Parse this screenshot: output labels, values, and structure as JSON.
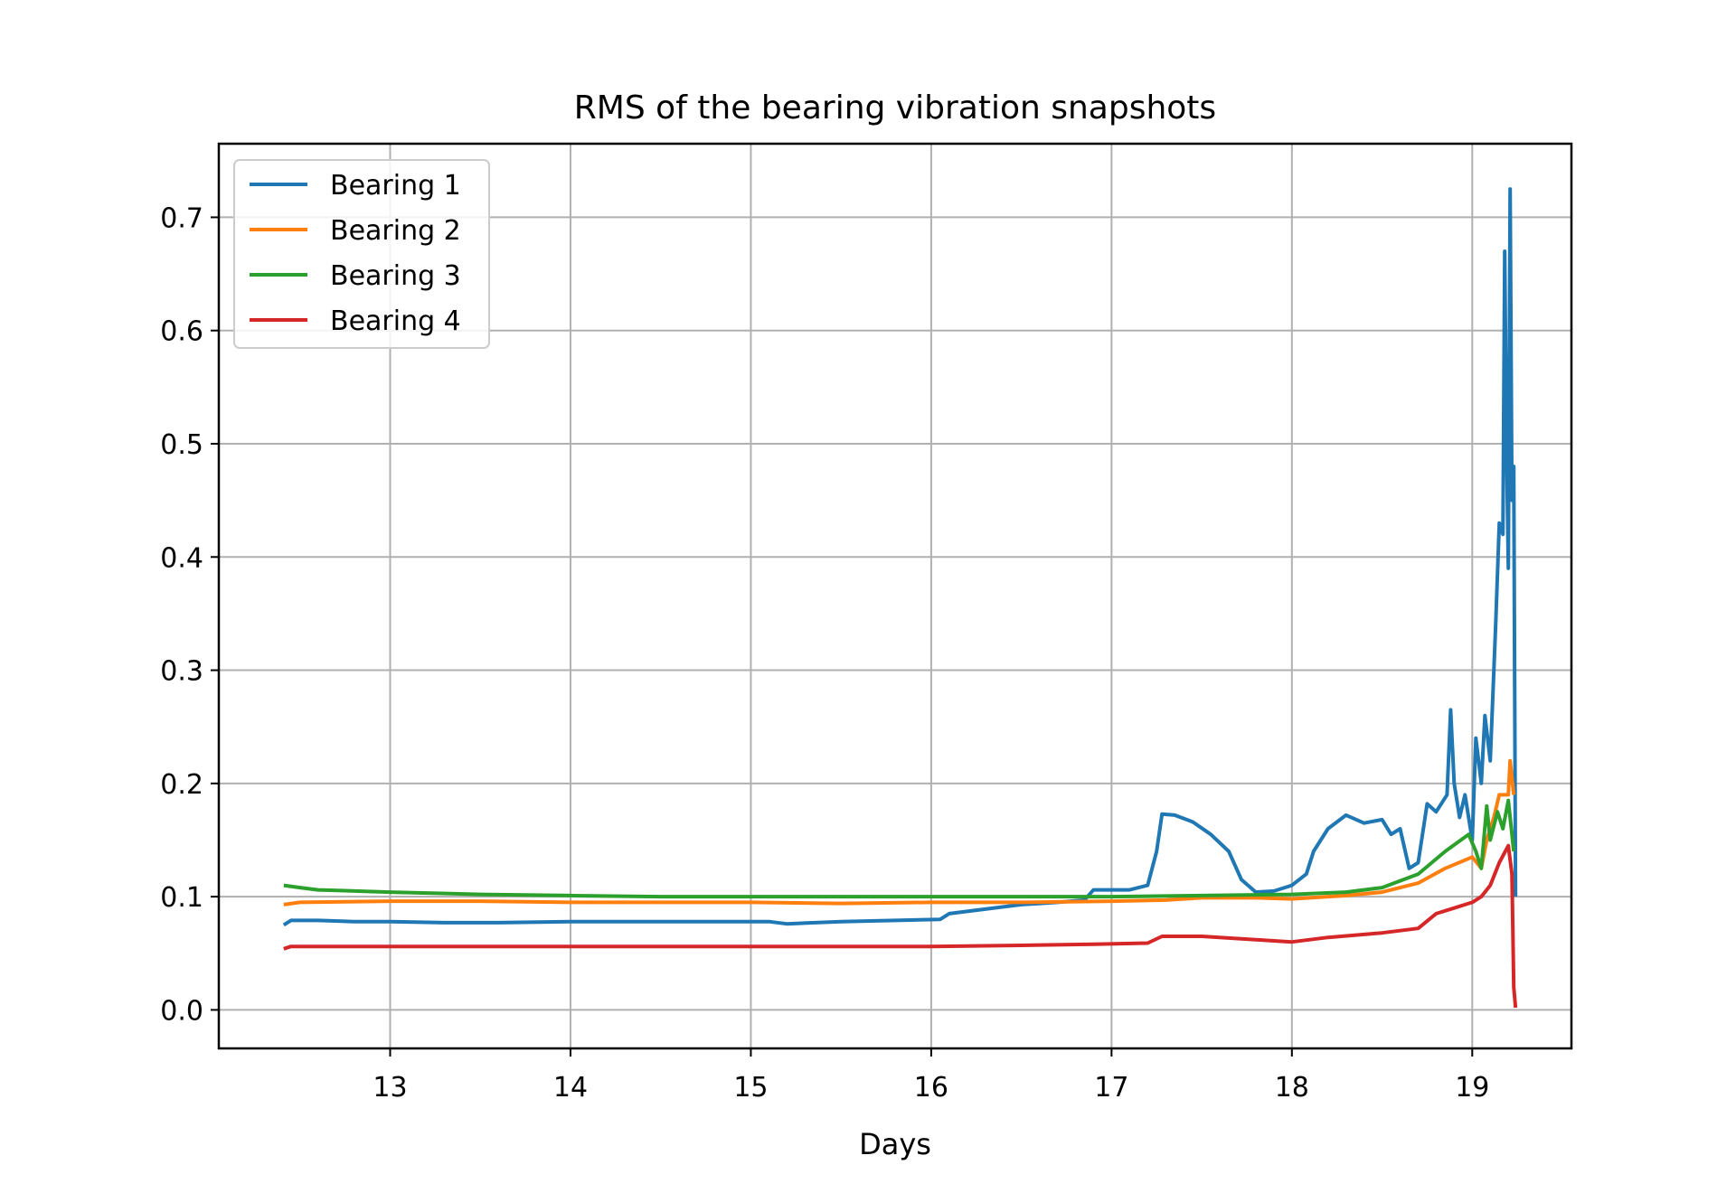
{
  "chart_data": {
    "type": "line",
    "title": "RMS of the bearing vibration snapshots",
    "xlabel": "Days",
    "ylabel": "",
    "xlim": [
      12.05,
      19.55
    ],
    "ylim": [
      -0.034,
      0.765
    ],
    "xticks": [
      13,
      14,
      15,
      16,
      17,
      18,
      19
    ],
    "yticks": [
      0.0,
      0.1,
      0.2,
      0.3,
      0.4,
      0.5,
      0.6,
      0.7
    ],
    "xtick_labels": [
      "13",
      "14",
      "15",
      "16",
      "17",
      "18",
      "19"
    ],
    "ytick_labels": [
      "0.0",
      "0.1",
      "0.2",
      "0.3",
      "0.4",
      "0.5",
      "0.6",
      "0.7"
    ],
    "grid": true,
    "legend_position": "top-left",
    "series": [
      {
        "name": "Bearing 1",
        "color": "#1f77b4",
        "points": [
          [
            12.41,
            0.075
          ],
          [
            12.45,
            0.079
          ],
          [
            12.6,
            0.079
          ],
          [
            12.8,
            0.078
          ],
          [
            13.0,
            0.078
          ],
          [
            13.3,
            0.077
          ],
          [
            13.6,
            0.077
          ],
          [
            14.0,
            0.078
          ],
          [
            14.4,
            0.078
          ],
          [
            14.8,
            0.078
          ],
          [
            15.1,
            0.078
          ],
          [
            15.2,
            0.076
          ],
          [
            15.5,
            0.078
          ],
          [
            15.8,
            0.079
          ],
          [
            16.05,
            0.08
          ],
          [
            16.1,
            0.085
          ],
          [
            16.3,
            0.089
          ],
          [
            16.5,
            0.093
          ],
          [
            16.7,
            0.095
          ],
          [
            16.85,
            0.097
          ],
          [
            16.9,
            0.106
          ],
          [
            17.1,
            0.106
          ],
          [
            17.2,
            0.11
          ],
          [
            17.25,
            0.14
          ],
          [
            17.28,
            0.173
          ],
          [
            17.35,
            0.172
          ],
          [
            17.45,
            0.166
          ],
          [
            17.55,
            0.155
          ],
          [
            17.65,
            0.14
          ],
          [
            17.72,
            0.115
          ],
          [
            17.8,
            0.104
          ],
          [
            17.9,
            0.105
          ],
          [
            18.0,
            0.11
          ],
          [
            18.08,
            0.12
          ],
          [
            18.12,
            0.14
          ],
          [
            18.2,
            0.16
          ],
          [
            18.3,
            0.172
          ],
          [
            18.4,
            0.165
          ],
          [
            18.5,
            0.168
          ],
          [
            18.55,
            0.155
          ],
          [
            18.6,
            0.16
          ],
          [
            18.65,
            0.125
          ],
          [
            18.7,
            0.13
          ],
          [
            18.75,
            0.182
          ],
          [
            18.8,
            0.175
          ],
          [
            18.86,
            0.19
          ],
          [
            18.88,
            0.265
          ],
          [
            18.9,
            0.2
          ],
          [
            18.93,
            0.17
          ],
          [
            18.96,
            0.19
          ],
          [
            19.0,
            0.15
          ],
          [
            19.02,
            0.24
          ],
          [
            19.05,
            0.2
          ],
          [
            19.07,
            0.26
          ],
          [
            19.1,
            0.22
          ],
          [
            19.12,
            0.3
          ],
          [
            19.13,
            0.34
          ],
          [
            19.15,
            0.43
          ],
          [
            19.17,
            0.42
          ],
          [
            19.18,
            0.67
          ],
          [
            19.19,
            0.5
          ],
          [
            19.2,
            0.39
          ],
          [
            19.21,
            0.725
          ],
          [
            19.22,
            0.45
          ],
          [
            19.23,
            0.48
          ],
          [
            19.24,
            0.1
          ]
        ]
      },
      {
        "name": "Bearing 2",
        "color": "#ff7f0e",
        "points": [
          [
            12.41,
            0.093
          ],
          [
            12.5,
            0.095
          ],
          [
            13.0,
            0.096
          ],
          [
            13.5,
            0.096
          ],
          [
            14.0,
            0.095
          ],
          [
            14.5,
            0.095
          ],
          [
            15.0,
            0.095
          ],
          [
            15.5,
            0.094
          ],
          [
            16.0,
            0.095
          ],
          [
            16.5,
            0.095
          ],
          [
            17.0,
            0.096
          ],
          [
            17.3,
            0.097
          ],
          [
            17.5,
            0.099
          ],
          [
            17.8,
            0.099
          ],
          [
            18.0,
            0.098
          ],
          [
            18.3,
            0.101
          ],
          [
            18.5,
            0.104
          ],
          [
            18.7,
            0.112
          ],
          [
            18.85,
            0.125
          ],
          [
            19.0,
            0.135
          ],
          [
            19.05,
            0.125
          ],
          [
            19.08,
            0.15
          ],
          [
            19.12,
            0.17
          ],
          [
            19.15,
            0.19
          ],
          [
            19.2,
            0.19
          ],
          [
            19.21,
            0.22
          ],
          [
            19.23,
            0.19
          ]
        ]
      },
      {
        "name": "Bearing 3",
        "color": "#2ca02c",
        "points": [
          [
            12.41,
            0.11
          ],
          [
            12.5,
            0.108
          ],
          [
            12.6,
            0.106
          ],
          [
            13.0,
            0.104
          ],
          [
            13.5,
            0.102
          ],
          [
            14.0,
            0.101
          ],
          [
            14.5,
            0.1
          ],
          [
            15.0,
            0.1
          ],
          [
            15.5,
            0.1
          ],
          [
            16.0,
            0.1
          ],
          [
            16.5,
            0.1
          ],
          [
            17.0,
            0.1
          ],
          [
            17.5,
            0.101
          ],
          [
            18.0,
            0.102
          ],
          [
            18.3,
            0.104
          ],
          [
            18.5,
            0.108
          ],
          [
            18.7,
            0.12
          ],
          [
            18.85,
            0.14
          ],
          [
            18.98,
            0.155
          ],
          [
            19.02,
            0.14
          ],
          [
            19.05,
            0.125
          ],
          [
            19.08,
            0.18
          ],
          [
            19.1,
            0.15
          ],
          [
            19.14,
            0.175
          ],
          [
            19.17,
            0.16
          ],
          [
            19.2,
            0.185
          ],
          [
            19.23,
            0.14
          ]
        ]
      },
      {
        "name": "Bearing 4",
        "color": "#d62728",
        "points": [
          [
            12.41,
            0.054
          ],
          [
            12.45,
            0.056
          ],
          [
            13.0,
            0.056
          ],
          [
            13.5,
            0.056
          ],
          [
            14.0,
            0.056
          ],
          [
            14.5,
            0.056
          ],
          [
            15.0,
            0.056
          ],
          [
            15.5,
            0.056
          ],
          [
            16.0,
            0.056
          ],
          [
            16.5,
            0.057
          ],
          [
            16.9,
            0.058
          ],
          [
            17.2,
            0.059
          ],
          [
            17.28,
            0.065
          ],
          [
            17.5,
            0.065
          ],
          [
            17.8,
            0.062
          ],
          [
            18.0,
            0.06
          ],
          [
            18.2,
            0.064
          ],
          [
            18.5,
            0.068
          ],
          [
            18.7,
            0.072
          ],
          [
            18.8,
            0.085
          ],
          [
            18.9,
            0.09
          ],
          [
            19.0,
            0.095
          ],
          [
            19.05,
            0.1
          ],
          [
            19.1,
            0.11
          ],
          [
            19.15,
            0.13
          ],
          [
            19.2,
            0.145
          ],
          [
            19.22,
            0.12
          ],
          [
            19.23,
            0.02
          ],
          [
            19.24,
            0.002
          ]
        ]
      }
    ]
  }
}
